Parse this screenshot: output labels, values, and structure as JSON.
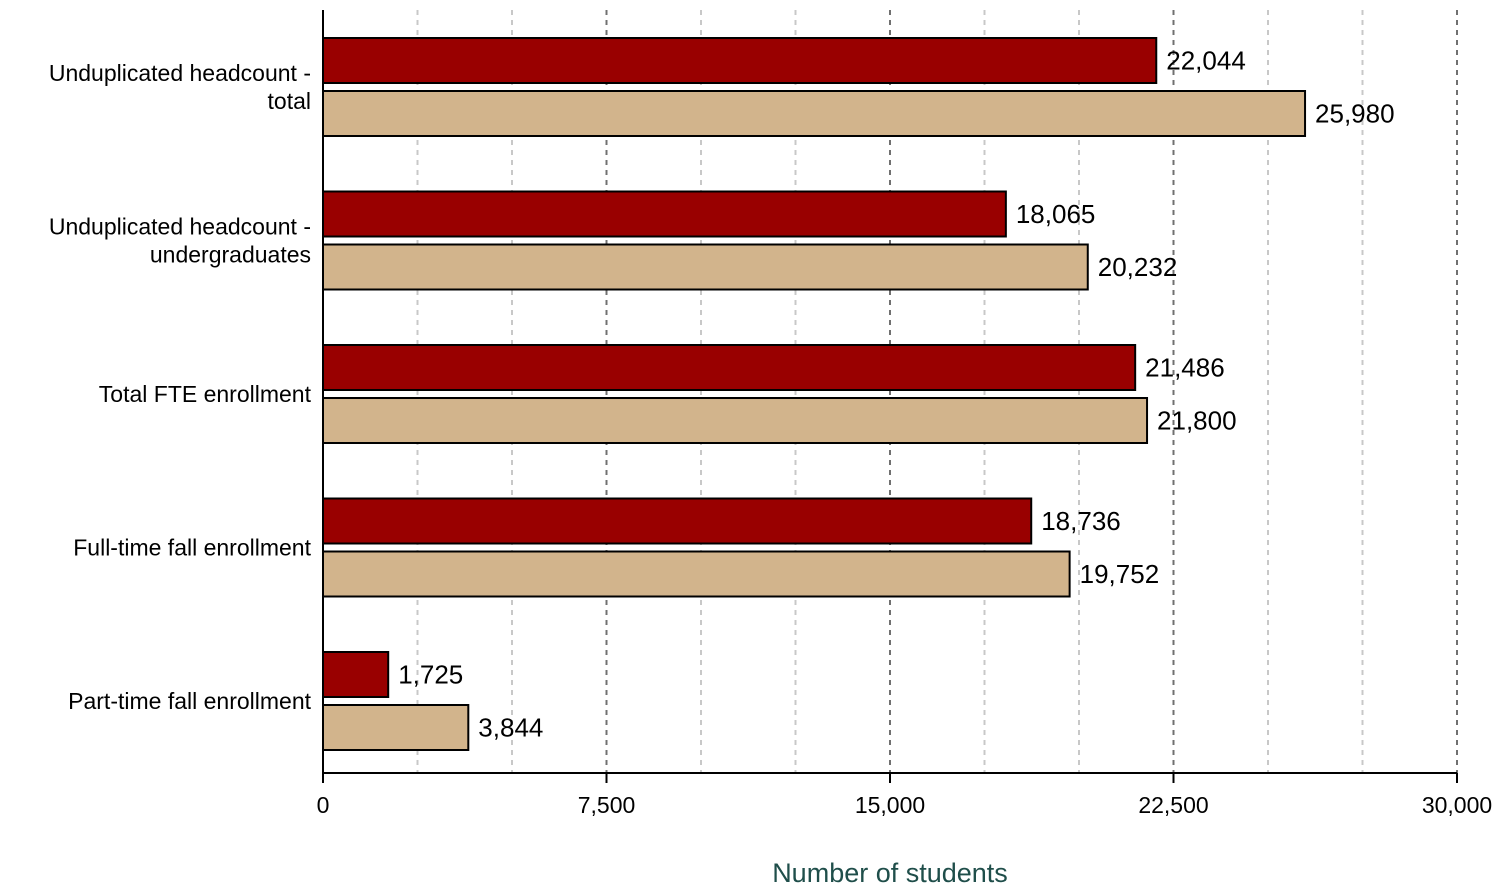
{
  "chart_data": {
    "type": "bar",
    "orientation": "horizontal",
    "categories": [
      [
        "Unduplicated headcount -",
        "total"
      ],
      [
        "Unduplicated headcount -",
        "undergraduates"
      ],
      [
        "Total FTE enrollment"
      ],
      [
        "Full-time fall enrollment"
      ],
      [
        "Part-time fall enrollment"
      ]
    ],
    "series": [
      {
        "color": "#990000",
        "values": [
          22044,
          18065,
          21486,
          18736,
          1725
        ],
        "labels": [
          "22,044",
          "18,065",
          "21,486",
          "18,736",
          "1,725"
        ]
      },
      {
        "color": "#d2b48c",
        "values": [
          25980,
          20232,
          21800,
          19752,
          3844
        ],
        "labels": [
          "25,980",
          "20,232",
          "21,800",
          "19,752",
          "3,844"
        ]
      }
    ],
    "xlabel": "Number of students",
    "xlabel_color": "#1f4e4a",
    "xlim": [
      0,
      30000
    ],
    "major_ticks": [
      0,
      7500,
      15000,
      22500,
      30000
    ],
    "tick_labels": [
      "0",
      "7,500",
      "15,000",
      "22,500",
      "30,000"
    ],
    "minor_ticks": [
      2500,
      5000,
      10000,
      12500,
      17500,
      20000,
      25000,
      27500
    ],
    "grid": true
  }
}
